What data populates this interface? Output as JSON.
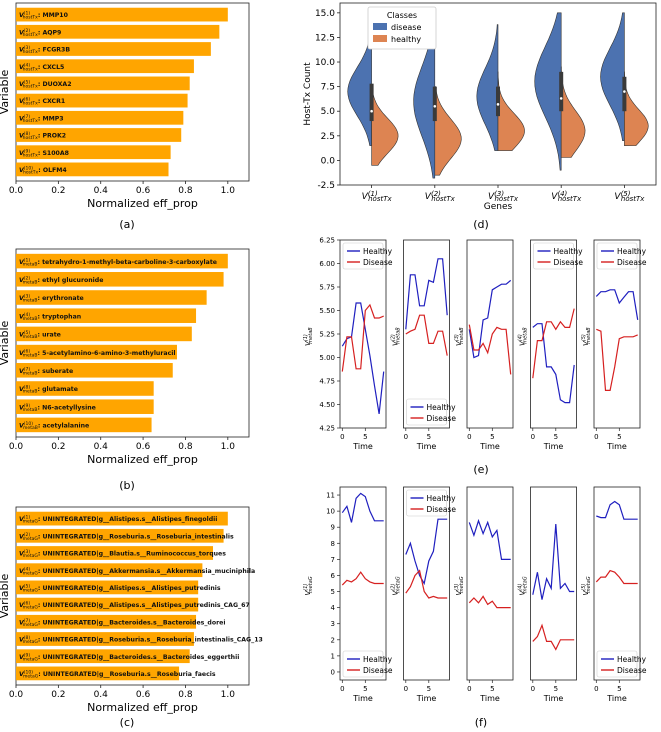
{
  "panels": {
    "a": {
      "caption": "(a)"
    },
    "b": {
      "caption": "(b)"
    },
    "c": {
      "caption": "(c)"
    },
    "d": {
      "caption": "(d)"
    },
    "e": {
      "caption": "(e)"
    },
    "f": {
      "caption": "(f)"
    }
  },
  "colors": {
    "bar": "#FFA500",
    "disease_violin": "#4C72B0",
    "healthy_violin": "#DD8452",
    "healthy_line": "#1f1fbf",
    "disease_line": "#d62020",
    "frame": "#222222"
  },
  "chart_data": [
    {
      "id": "a",
      "type": "bar",
      "orientation": "horizontal",
      "ylabel": "Variable",
      "xlabel": "Normalized eff_prop",
      "xlim": [
        0,
        1.1
      ],
      "xticks": [
        "0.0",
        "0.2",
        "0.4",
        "0.6",
        "0.8",
        "1.0"
      ],
      "var_prefix": "V",
      "var_subscript": "hostTx",
      "categories": [
        "MMP10",
        "AQP9",
        "FCGR3B",
        "CXCL5",
        "DUOXA2",
        "CXCR1",
        "MMP3",
        "PROK2",
        "S100A8",
        "OLFM4"
      ],
      "indices": [
        "(1)",
        "(2)",
        "(3)",
        "(4)",
        "(5)",
        "(6)",
        "(7)",
        "(8)",
        "(9)",
        "(10)"
      ],
      "values": [
        1.0,
        0.96,
        0.92,
        0.84,
        0.82,
        0.81,
        0.79,
        0.78,
        0.73,
        0.72
      ]
    },
    {
      "id": "b",
      "type": "bar",
      "orientation": "horizontal",
      "ylabel": "Variable",
      "xlabel": "Normalized eff_prop",
      "xlim": [
        0,
        1.1
      ],
      "xticks": [
        "0.0",
        "0.2",
        "0.4",
        "0.6",
        "0.8",
        "1.0"
      ],
      "var_prefix": "V",
      "var_subscript": "metaB",
      "categories": [
        "tetrahydro-1-methyl-beta-carboline-3-carboxylate",
        "ethyl glucuronide",
        "erythronate",
        "tryptophan",
        "urate",
        "5-acetylamino-6-amino-3-methyluracil",
        "suberate",
        "glutamate",
        "N6-acetyllysine",
        "acetylalanine"
      ],
      "indices": [
        "(1)",
        "(2)",
        "(3)",
        "(4)",
        "(5)",
        "(6)",
        "(7)",
        "(8)",
        "(9)",
        "(10)"
      ],
      "values": [
        1.0,
        0.98,
        0.9,
        0.85,
        0.83,
        0.76,
        0.74,
        0.65,
        0.65,
        0.64
      ]
    },
    {
      "id": "c",
      "type": "bar",
      "orientation": "horizontal",
      "ylabel": "Variable",
      "xlabel": "Normalized eff_prop",
      "xlim": [
        0,
        1.1
      ],
      "xticks": [
        "0.0",
        "0.2",
        "0.4",
        "0.6",
        "0.8",
        "1.0"
      ],
      "var_prefix": "V",
      "var_subscript": "metaG",
      "categories": [
        "UNINTEGRATED|g__Alistipes.s__Alistipes_finegoldii",
        "UNINTEGRATED|g__Roseburia.s__Roseburia_intestinalis",
        "UNINTEGRATED|g__Blautia.s__Ruminococcus_torques",
        "UNINTEGRATED|g__Akkermansia.s__Akkermansia_muciniphila",
        "UNINTEGRATED|g__Alistipes.s__Alistipes_putredinis",
        "UNINTEGRATED|g__Alistipes.s__Alistipes_putredinis_CAG_67",
        "UNINTEGRATED|g__Bacteroides.s__Bacteroides_dorei",
        "UNINTEGRATED|g__Roseburia.s__Roseburia_intestinalis_CAG_13",
        "UNINTEGRATED|g__Bacteroides.s__Bacteroides_eggerthii",
        "UNINTEGRATED|g__Roseburia.s__Roseburia_faecis"
      ],
      "indices": [
        "(1)",
        "(2)",
        "(3)",
        "(4)",
        "(5)",
        "(6)",
        "(7)",
        "(8)",
        "(9)",
        "(10)"
      ],
      "values": [
        1.0,
        0.98,
        0.93,
        0.88,
        0.86,
        0.86,
        0.85,
        0.84,
        0.82,
        0.77
      ]
    },
    {
      "id": "d",
      "type": "violin",
      "ylabel": "Host-Tx Count",
      "xlabel": "Genes",
      "ylim": [
        -2.5,
        16
      ],
      "yticks": [
        "-2.5",
        "0.0",
        "2.5",
        "5.0",
        "7.5",
        "10.0",
        "12.5",
        "15.0"
      ],
      "ytick_values": [
        -2.5,
        0,
        2.5,
        5,
        7.5,
        10,
        12.5,
        15
      ],
      "legend": {
        "title": "Classes",
        "entries": [
          "disease",
          "healthy"
        ],
        "placement": "top-left"
      },
      "categories": [
        "(1)",
        "(2)",
        "(3)",
        "(4)",
        "(5)"
      ],
      "var_prefix": "V",
      "var_subscript": "hostTx",
      "series": [
        {
          "name": "disease",
          "side": "left",
          "violins": [
            {
              "min": 1.5,
              "max": 12.5,
              "peak": 7.0,
              "width": 0.9
            },
            {
              "min": -1.8,
              "max": 14.2,
              "peak": 6.0,
              "width": 0.8
            },
            {
              "min": 1.0,
              "max": 13.8,
              "peak": 6.5,
              "width": 0.8
            },
            {
              "min": -1.0,
              "max": 15.0,
              "peak": 8.0,
              "width": 1.0
            },
            {
              "min": 2.0,
              "max": 15.0,
              "peak": 8.5,
              "width": 0.9
            }
          ]
        },
        {
          "name": "healthy",
          "side": "right",
          "violins": [
            {
              "min": -0.5,
              "max": 7.5,
              "peak": 2.5,
              "width": 1.0
            },
            {
              "min": -1.5,
              "max": 7.5,
              "peak": 2.2,
              "width": 1.0
            },
            {
              "min": 1.0,
              "max": 9.0,
              "peak": 3.0,
              "width": 1.0
            },
            {
              "min": 0.3,
              "max": 9.5,
              "peak": 3.0,
              "width": 0.9
            },
            {
              "min": 1.5,
              "max": 9.0,
              "peak": 3.5,
              "width": 0.9
            }
          ]
        }
      ],
      "boxes": [
        {
          "q1": 4.0,
          "q3": 7.8,
          "median": 5.0
        },
        {
          "q1": 4.0,
          "q3": 7.5,
          "median": 5.5
        },
        {
          "q1": 4.5,
          "q3": 7.5,
          "median": 5.7
        },
        {
          "q1": 5.0,
          "q3": 9.0,
          "median": 6.3
        },
        {
          "q1": 5.0,
          "q3": 8.5,
          "median": 7.0
        }
      ]
    },
    {
      "id": "e",
      "type": "line",
      "xlabel": "Time",
      "ylim": [
        4.25,
        6.25
      ],
      "yticks": [
        "4.25",
        "4.50",
        "4.75",
        "5.00",
        "5.25",
        "5.50",
        "5.75",
        "6.00",
        "6.25"
      ],
      "ytick_values": [
        4.25,
        4.5,
        4.75,
        5.0,
        5.25,
        5.5,
        5.75,
        6.0,
        6.25
      ],
      "xticks": [
        "0",
        "5"
      ],
      "xtick_values": [
        0,
        5
      ],
      "xlim": [
        -0.5,
        9.5
      ],
      "var_prefix": "V",
      "var_subscript": "metaB",
      "series_names": [
        "Healthy",
        "Disease"
      ],
      "subplots": [
        {
          "index": "(1)",
          "legend": "top",
          "series": [
            {
              "name": "Healthy",
              "y": [
                5.12,
                5.2,
                5.22,
                5.58,
                5.58,
                5.3,
                5.02,
                4.7,
                4.4,
                4.85
              ]
            },
            {
              "name": "Disease",
              "y": [
                4.85,
                5.22,
                5.22,
                4.88,
                4.88,
                5.5,
                5.56,
                5.42,
                5.42,
                5.44
              ]
            }
          ]
        },
        {
          "index": "(2)",
          "legend": "bottom",
          "series": [
            {
              "name": "Healthy",
              "y": [
                5.3,
                5.88,
                5.88,
                5.55,
                5.55,
                5.82,
                5.8,
                6.05,
                6.05,
                5.45
              ]
            },
            {
              "name": "Disease",
              "y": [
                5.25,
                5.28,
                5.3,
                5.45,
                5.45,
                5.15,
                5.15,
                5.28,
                5.28,
                5.02
              ]
            }
          ]
        },
        {
          "index": "(3)",
          "legend": "none",
          "series": [
            {
              "name": "Healthy",
              "y": [
                5.3,
                5.0,
                5.02,
                5.4,
                5.42,
                5.72,
                5.75,
                5.78,
                5.78,
                5.82
              ]
            },
            {
              "name": "Disease",
              "y": [
                5.35,
                5.08,
                5.08,
                5.15,
                5.05,
                5.25,
                5.32,
                5.3,
                5.3,
                4.82
              ]
            }
          ]
        },
        {
          "index": "(4)",
          "legend": "top",
          "series": [
            {
              "name": "Healthy",
              "y": [
                5.32,
                5.36,
                5.36,
                4.9,
                4.9,
                4.82,
                4.55,
                4.52,
                4.52,
                4.92
              ]
            },
            {
              "name": "Disease",
              "y": [
                4.78,
                5.18,
                5.18,
                5.38,
                5.38,
                5.3,
                5.38,
                5.32,
                5.32,
                5.52
              ]
            }
          ]
        },
        {
          "index": "(5)",
          "legend": "top",
          "series": [
            {
              "name": "Healthy",
              "y": [
                5.65,
                5.7,
                5.7,
                5.72,
                5.72,
                5.58,
                5.64,
                5.7,
                5.7,
                5.4
              ]
            },
            {
              "name": "Disease",
              "y": [
                5.3,
                5.28,
                4.65,
                4.65,
                4.9,
                5.2,
                5.22,
                5.22,
                5.22,
                5.24
              ]
            }
          ]
        }
      ]
    },
    {
      "id": "f",
      "type": "line",
      "xlabel": "Time",
      "ylim": [
        -0.5,
        11.5
      ],
      "yticks": [
        "0",
        "1",
        "2",
        "3",
        "4",
        "5",
        "6",
        "7",
        "8",
        "9",
        "10",
        "11"
      ],
      "ytick_values": [
        0,
        1,
        2,
        3,
        4,
        5,
        6,
        7,
        8,
        9,
        10,
        11
      ],
      "xticks": [
        "0",
        "5"
      ],
      "xtick_values": [
        0,
        5
      ],
      "xlim": [
        -0.5,
        9.5
      ],
      "var_prefix": "V",
      "var_subscript": "metaG",
      "series_names": [
        "Healthy",
        "Disease"
      ],
      "subplots": [
        {
          "index": "(1)",
          "legend": "bottom",
          "series": [
            {
              "name": "Healthy",
              "y": [
                9.9,
                10.3,
                9.3,
                10.8,
                11.1,
                10.9,
                10.0,
                9.4,
                9.4,
                9.4
              ]
            },
            {
              "name": "Disease",
              "y": [
                5.4,
                5.7,
                5.6,
                5.8,
                6.2,
                5.8,
                5.6,
                5.5,
                5.5,
                5.5
              ]
            }
          ]
        },
        {
          "index": "(2)",
          "legend": "top",
          "series": [
            {
              "name": "Healthy",
              "y": [
                7.3,
                8.0,
                6.9,
                6.0,
                5.5,
                6.9,
                7.5,
                9.5,
                9.5,
                9.5
              ]
            },
            {
              "name": "Disease",
              "y": [
                4.9,
                5.3,
                6.0,
                6.3,
                5.0,
                4.6,
                4.7,
                4.6,
                4.6,
                4.6
              ]
            }
          ]
        },
        {
          "index": "(3)",
          "legend": "none",
          "series": [
            {
              "name": "Healthy",
              "y": [
                9.3,
                8.5,
                9.4,
                8.6,
                9.3,
                8.4,
                8.8,
                7.0,
                7.0,
                7.0
              ]
            },
            {
              "name": "Disease",
              "y": [
                4.3,
                4.6,
                4.3,
                4.7,
                4.2,
                4.4,
                4.0,
                4.0,
                4.0,
                4.0
              ]
            }
          ]
        },
        {
          "index": "(4)",
          "legend": "none",
          "series": [
            {
              "name": "Healthy",
              "y": [
                4.8,
                6.2,
                4.5,
                5.8,
                5.2,
                9.2,
                5.2,
                5.5,
                5.0,
                5.0
              ]
            },
            {
              "name": "Disease",
              "y": [
                1.9,
                2.2,
                2.9,
                1.9,
                1.9,
                1.4,
                2.0,
                2.0,
                2.0,
                2.0
              ]
            }
          ]
        },
        {
          "index": "(5)",
          "legend": "bottom",
          "series": [
            {
              "name": "Healthy",
              "y": [
                9.7,
                9.6,
                9.6,
                10.4,
                10.6,
                10.4,
                9.5,
                9.5,
                9.5,
                9.5
              ]
            },
            {
              "name": "Disease",
              "y": [
                5.6,
                5.9,
                5.9,
                6.3,
                6.2,
                5.9,
                5.5,
                5.5,
                5.5,
                5.5
              ]
            }
          ]
        }
      ]
    }
  ]
}
